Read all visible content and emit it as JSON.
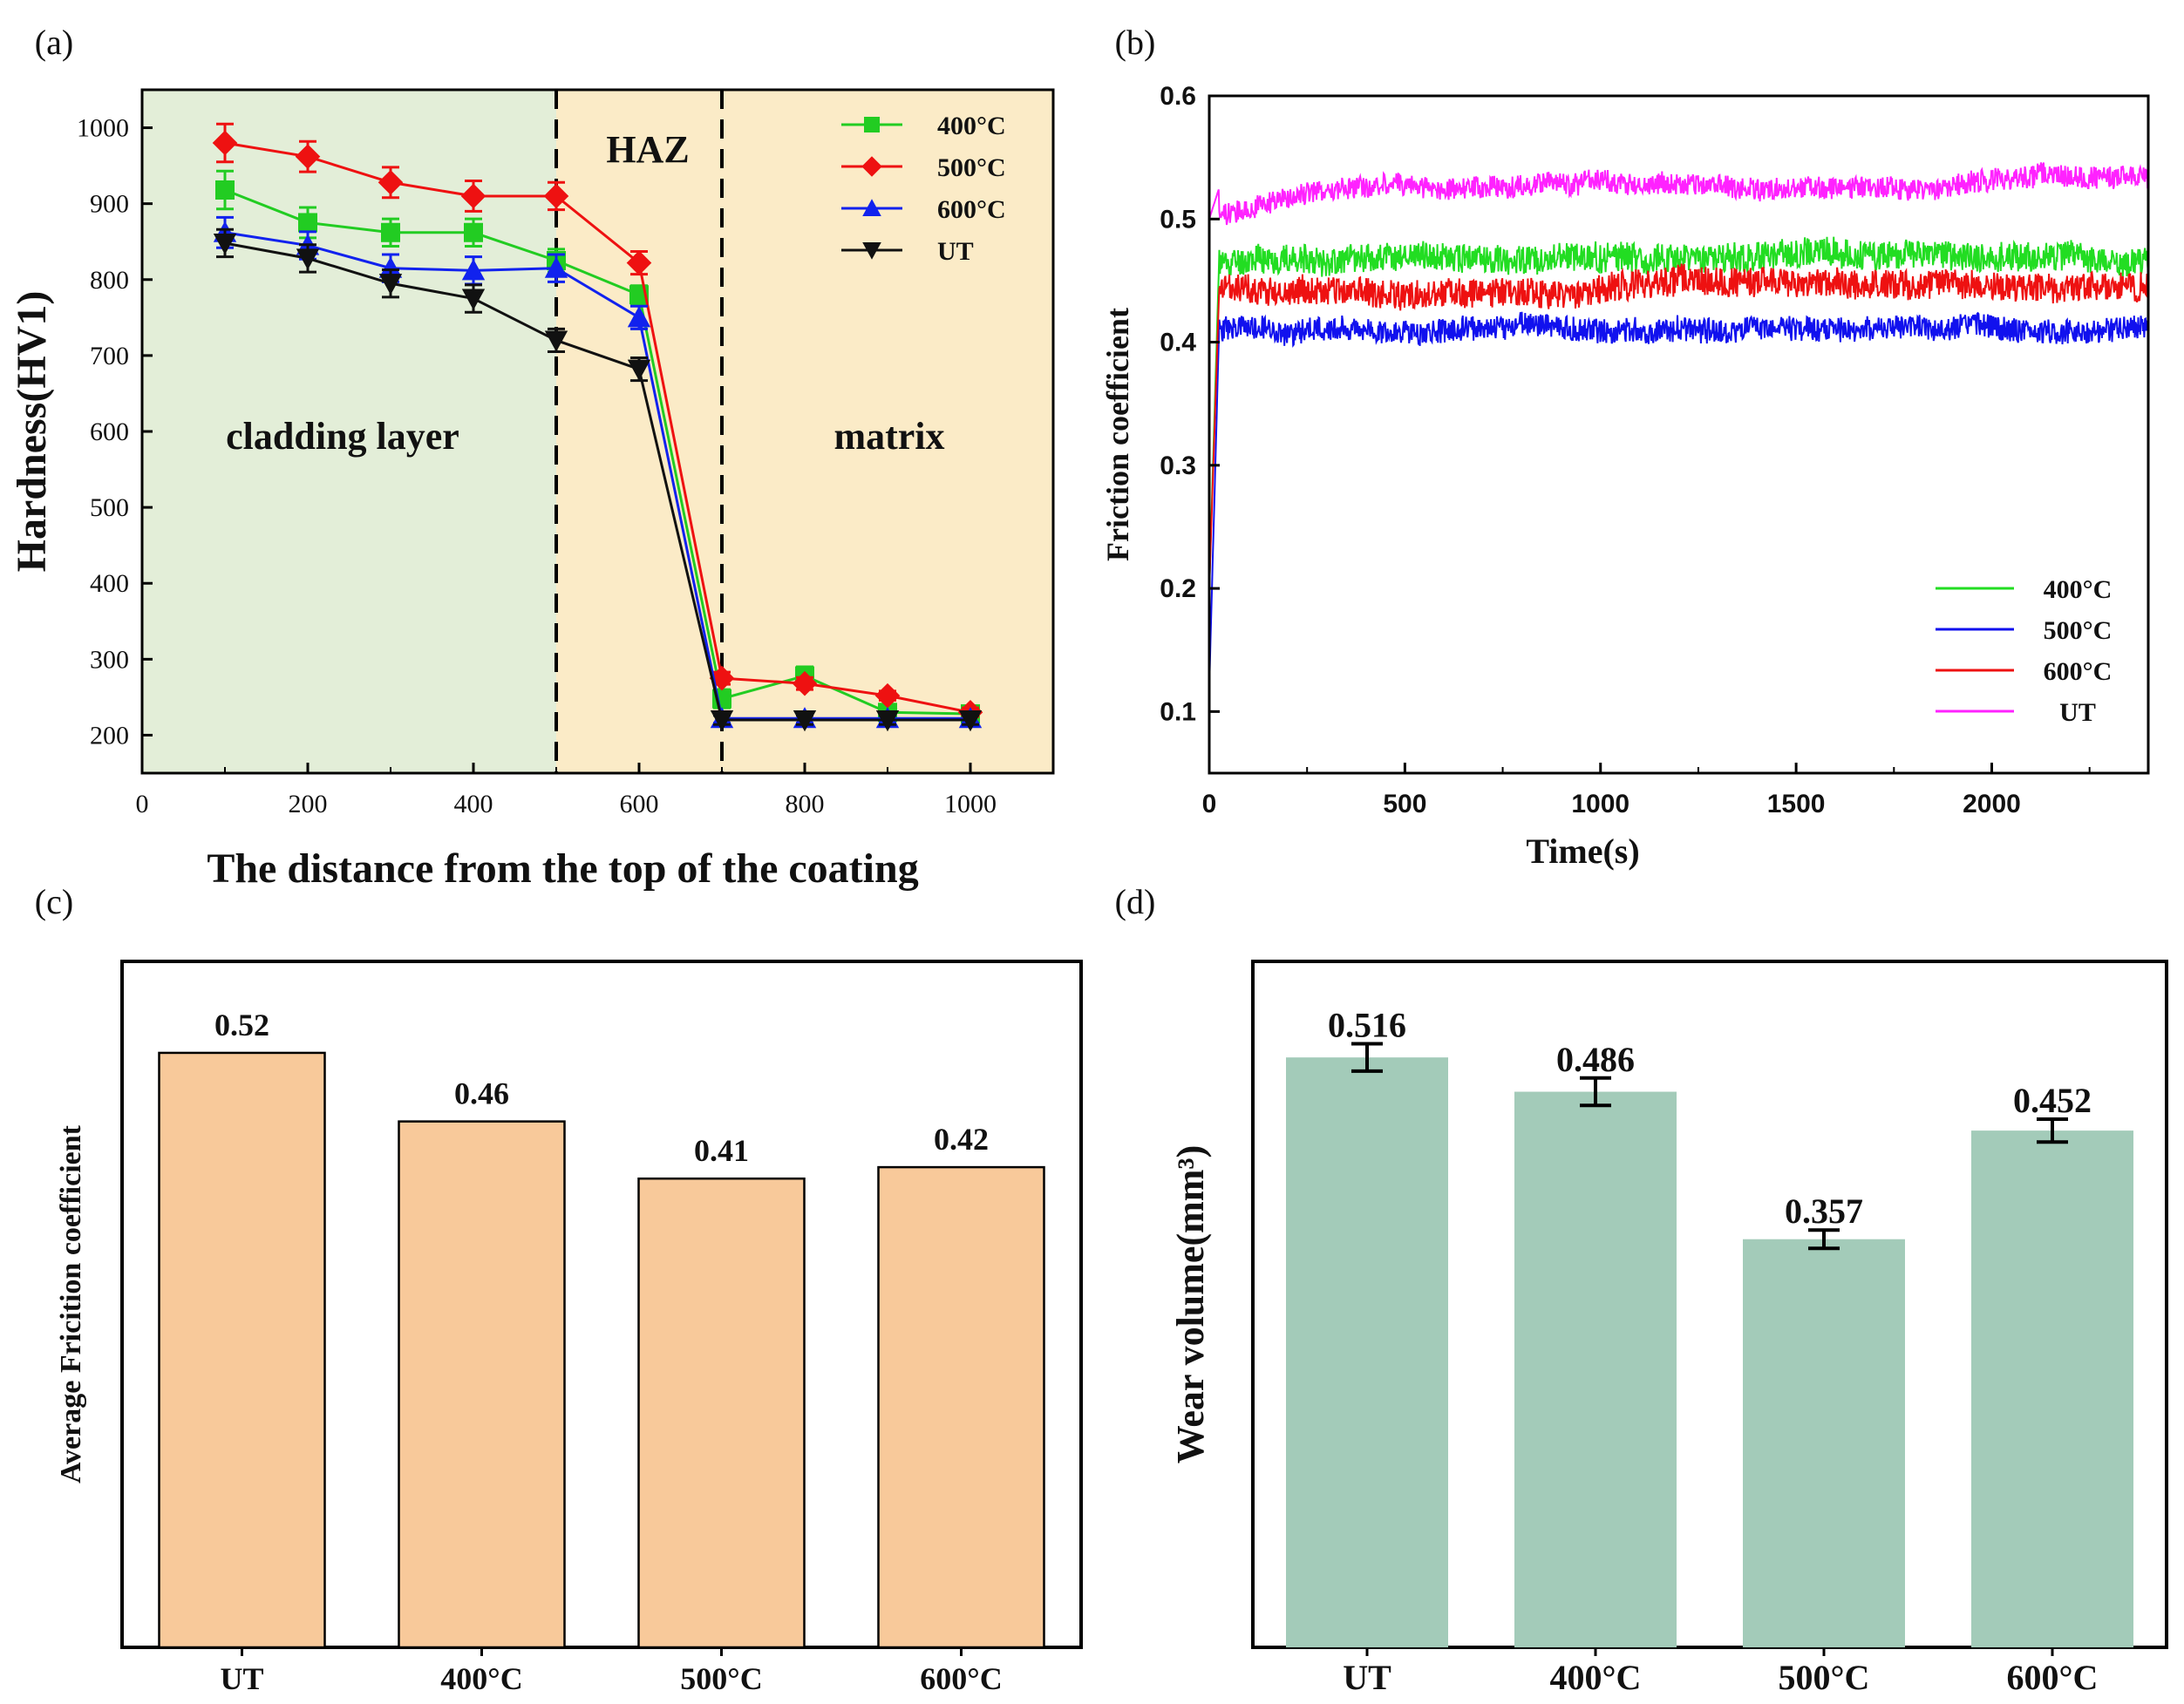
{
  "figure": {
    "panels": [
      "(a)",
      "(b)",
      "(c)",
      "(d)"
    ]
  },
  "chart_data": [
    {
      "id": "a",
      "type": "line",
      "panel_label": "(a)",
      "title": "",
      "xlabel": "The distance from the top of the coating",
      "ylabel": "Hardness(HV1)",
      "xlim": [
        0,
        1100
      ],
      "ylim": [
        150,
        1050
      ],
      "xticks": [
        0,
        200,
        400,
        600,
        800,
        1000
      ],
      "yticks": [
        200,
        300,
        400,
        500,
        600,
        700,
        800,
        900,
        1000
      ],
      "regions": [
        {
          "label": "cladding layer",
          "from": 0,
          "to": 500,
          "color": "#e3eed8"
        },
        {
          "label": "HAZ",
          "from": 500,
          "to": 700,
          "color": "#fbebc7"
        },
        {
          "label": "matrix",
          "from": 700,
          "to": 1100,
          "color": "#fbebc7"
        }
      ],
      "boundaries": [
        500,
        700
      ],
      "x": [
        100,
        200,
        300,
        400,
        500,
        600,
        700,
        800,
        900,
        1000
      ],
      "series": [
        {
          "name": "400°C",
          "color": "#22cc22",
          "marker": "square",
          "values": [
            918,
            875,
            862,
            862,
            825,
            780,
            248,
            278,
            230,
            228
          ],
          "errors": [
            25,
            20,
            18,
            18,
            15,
            12,
            12,
            12,
            8,
            6
          ]
        },
        {
          "name": "500°C",
          "color": "#ee1111",
          "marker": "diamond",
          "values": [
            980,
            962,
            928,
            910,
            910,
            822,
            275,
            268,
            252,
            230
          ],
          "errors": [
            25,
            20,
            20,
            20,
            18,
            15,
            8,
            8,
            6,
            6
          ]
        },
        {
          "name": "600°C",
          "color": "#1122ee",
          "marker": "triangle",
          "values": [
            862,
            845,
            815,
            812,
            815,
            750,
            222,
            222,
            222,
            222
          ],
          "errors": [
            20,
            18,
            18,
            18,
            18,
            15,
            6,
            6,
            6,
            6
          ]
        },
        {
          "name": "UT",
          "color": "#111111",
          "marker": "triangle-down",
          "values": [
            848,
            828,
            795,
            775,
            720,
            682,
            220,
            220,
            220,
            220
          ],
          "errors": [
            18,
            18,
            18,
            18,
            15,
            15,
            6,
            6,
            6,
            6
          ]
        }
      ],
      "legend": "top-right"
    },
    {
      "id": "b",
      "type": "line",
      "panel_label": "(b)",
      "title": "",
      "xlabel": "Time(s)",
      "ylabel": "Friction coefficient",
      "xlim": [
        0,
        2400
      ],
      "ylim": [
        0.05,
        0.6
      ],
      "xticks": [
        0,
        500,
        1000,
        1500,
        2000
      ],
      "yticks": [
        0.1,
        0.2,
        0.3,
        0.4,
        0.5,
        0.6
      ],
      "ytick_labels": [
        "0.1",
        "0.2",
        "0.3",
        "0.4",
        "0.5",
        "0.6"
      ],
      "series": [
        {
          "name": "400°C",
          "color": "#22dd22",
          "mean": 0.465,
          "noise": 0.012,
          "start": 0.2,
          "seed": 11
        },
        {
          "name": "500°C",
          "color": "#1111ee",
          "mean": 0.41,
          "noise": 0.01,
          "start": 0.12,
          "seed": 23
        },
        {
          "name": "600°C",
          "color": "#ee1111",
          "mean": 0.44,
          "noise": 0.012,
          "start": 0.2,
          "seed": 37
        },
        {
          "name": "UT",
          "color": "#ff22ff",
          "mean": 0.525,
          "noise": 0.009,
          "start": 0.5,
          "seed": 53
        }
      ],
      "legend": "bottom-right"
    },
    {
      "id": "c",
      "type": "bar",
      "panel_label": "(c)",
      "title": "",
      "xlabel": "",
      "ylabel": "Average Fricition coefficient",
      "categories": [
        "UT",
        "400°C",
        "500°C",
        "600°C"
      ],
      "values": [
        0.52,
        0.46,
        0.41,
        0.42
      ],
      "value_labels": [
        "0.52",
        "0.46",
        "0.41",
        "0.42"
      ],
      "ylim": [
        0,
        0.6
      ],
      "color": "#f8c99a"
    },
    {
      "id": "d",
      "type": "bar",
      "panel_label": "(d)",
      "title": "",
      "xlabel": "",
      "ylabel": "Wear volume(mm³)",
      "categories": [
        "UT",
        "400°C",
        "500°C",
        "600°C"
      ],
      "values": [
        0.516,
        0.486,
        0.357,
        0.452
      ],
      "value_labels": [
        "0.516",
        "0.486",
        "0.357",
        "0.452"
      ],
      "errors": [
        0.012,
        0.012,
        0.008,
        0.01
      ],
      "ylim": [
        0,
        0.6
      ],
      "color": "#a3cbb9"
    }
  ]
}
